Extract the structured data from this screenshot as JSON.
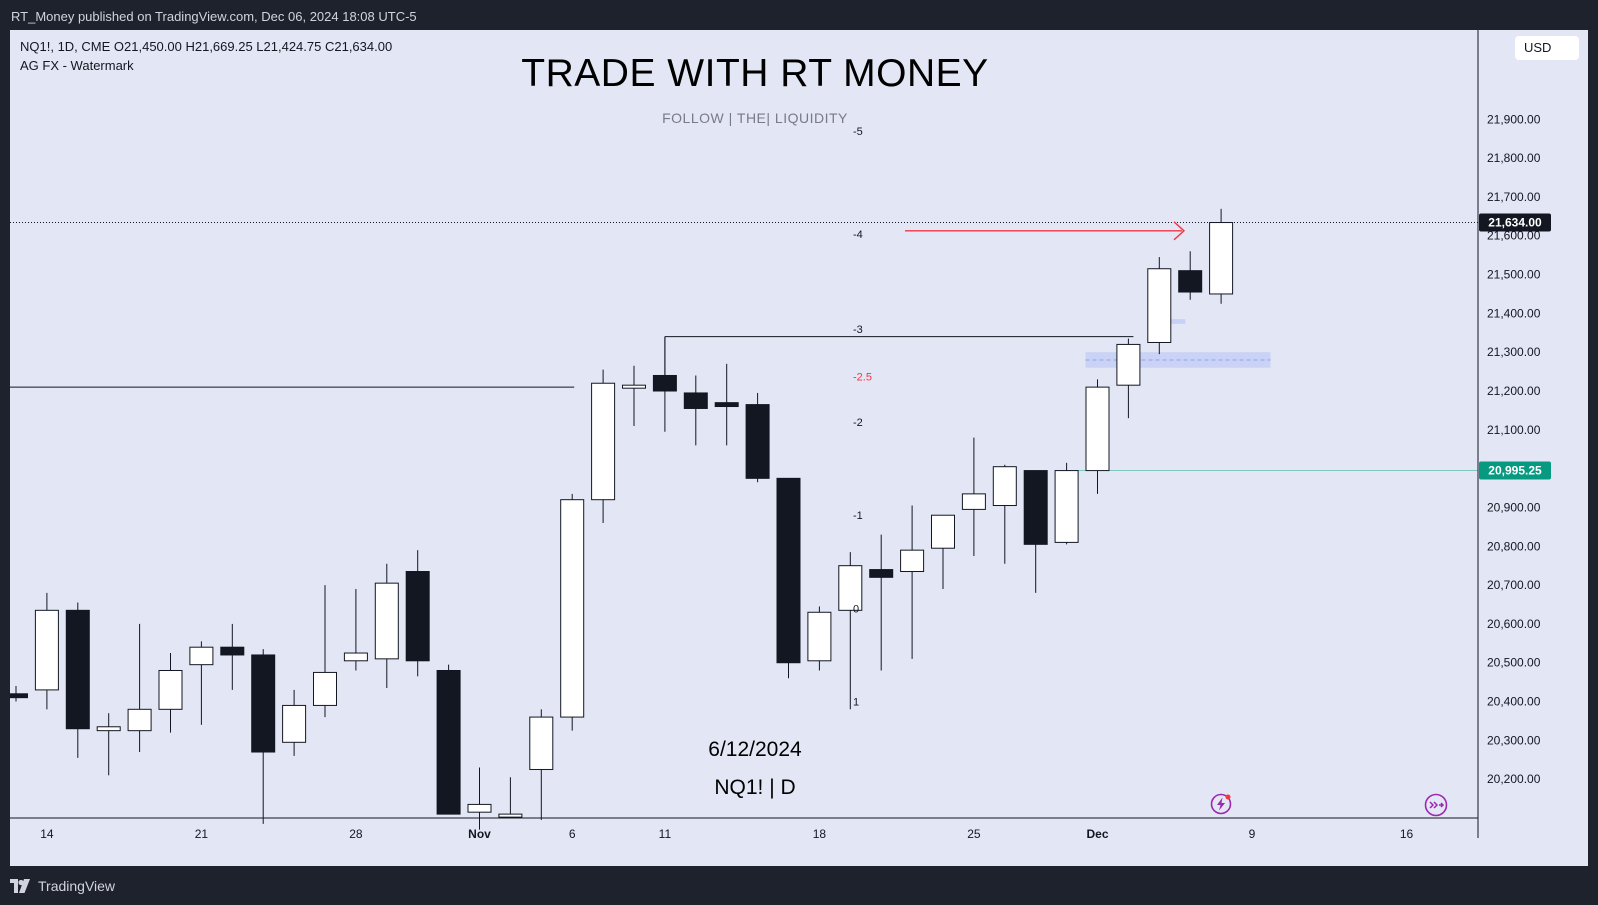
{
  "header": {
    "publisher_line": "RT_Money published on TradingView.com, Dec 06, 2024 18:08 UTC-5"
  },
  "footer": {
    "brand": "TradingView"
  },
  "legend": {
    "symbol_line": "NQ1!, 1D, CME  O21,450.00  H21,669.25  L21,424.75  C21,634.00",
    "indicator_line": "AG FX - Watermark"
  },
  "currency": "USD",
  "watermark": {
    "title": "TRADE WITH RT MONEY",
    "subtitle": "FOLLOW   |   THE|   LIQUIDITY",
    "date": "6/12/2024",
    "symbol": "NQ1!  |  D"
  },
  "colors": {
    "background": "#e3e6f4",
    "frame": "#1e222d",
    "bull_fill": "#ffffff",
    "bear_fill": "#131722",
    "candle_border": "#131722",
    "last_price_tag": "#131722",
    "level_tag": "#089981",
    "level_line": "#7fc8c0",
    "arrow": "#f23645",
    "fvg": "#c7d0f5"
  },
  "chart_data": {
    "type": "candlestick",
    "symbol": "NQ1!",
    "timeframe": "1D",
    "exchange": "CME",
    "ylim": [
      20100,
      22130
    ],
    "y_ticks": [
      20200,
      20300,
      20400,
      20500,
      20600,
      20700,
      20800,
      20900,
      21000,
      21100,
      21200,
      21300,
      21400,
      21500,
      21600,
      21700,
      21800,
      21900
    ],
    "y_tick_labels": [
      "20,200.00",
      "20,300.00",
      "20,400.00",
      "20,500.00",
      "20,600.00",
      "20,700.00",
      "20,800.00",
      "20,900.00",
      "21,000.00",
      "21,100.00",
      "21,200.00",
      "21,300.00",
      "21,400.00",
      "21,500.00",
      "21,600.00",
      "21,700.00",
      "21,800.00",
      "21,900.00"
    ],
    "x_labels": [
      {
        "slot": 1,
        "label": "14",
        "bold": false
      },
      {
        "slot": 6,
        "label": "21",
        "bold": false
      },
      {
        "slot": 11,
        "label": "28",
        "bold": false
      },
      {
        "slot": 15,
        "label": "Nov",
        "bold": true
      },
      {
        "slot": 18,
        "label": "6",
        "bold": false
      },
      {
        "slot": 21,
        "label": "11",
        "bold": false
      },
      {
        "slot": 26,
        "label": "18",
        "bold": false
      },
      {
        "slot": 31,
        "label": "25",
        "bold": false
      },
      {
        "slot": 35,
        "label": "Dec",
        "bold": true
      },
      {
        "slot": 40,
        "label": "9",
        "bold": false
      },
      {
        "slot": 45,
        "label": "16",
        "bold": false
      }
    ],
    "candles": [
      {
        "o": 20420,
        "h": 20440,
        "l": 20400,
        "c": 20410
      },
      {
        "o": 20430,
        "h": 20680,
        "l": 20380,
        "c": 20635
      },
      {
        "o": 20635,
        "h": 20655,
        "l": 20255,
        "c": 20330
      },
      {
        "o": 20325,
        "h": 20370,
        "l": 20210,
        "c": 20335
      },
      {
        "o": 20325,
        "h": 20600,
        "l": 20270,
        "c": 20380
      },
      {
        "o": 20380,
        "h": 20525,
        "l": 20320,
        "c": 20480
      },
      {
        "o": 20495,
        "h": 20555,
        "l": 20340,
        "c": 20540
      },
      {
        "o": 20540,
        "h": 20600,
        "l": 20430,
        "c": 20520
      },
      {
        "o": 20520,
        "h": 20535,
        "l": 20085,
        "c": 20270
      },
      {
        "o": 20295,
        "h": 20430,
        "l": 20260,
        "c": 20390
      },
      {
        "o": 20390,
        "h": 20700,
        "l": 20360,
        "c": 20475
      },
      {
        "o": 20505,
        "h": 20690,
        "l": 20480,
        "c": 20525
      },
      {
        "o": 20510,
        "h": 20755,
        "l": 20435,
        "c": 20705
      },
      {
        "o": 20735,
        "h": 20790,
        "l": 20465,
        "c": 20505
      },
      {
        "o": 20480,
        "h": 20495,
        "l": 20110,
        "c": 20110
      },
      {
        "o": 20115,
        "h": 20230,
        "l": 20070,
        "c": 20135
      },
      {
        "o": 20110,
        "h": 20205,
        "l": 20110,
        "c": 20110
      },
      {
        "o": 20225,
        "h": 20380,
        "l": 20095,
        "c": 20360
      },
      {
        "o": 20360,
        "h": 20935,
        "l": 20325,
        "c": 20920
      },
      {
        "o": 20920,
        "h": 21255,
        "l": 20860,
        "c": 21220
      },
      {
        "o": 21210,
        "h": 21265,
        "l": 21110,
        "c": 21215
      },
      {
        "o": 21240,
        "h": 21340,
        "l": 21095,
        "c": 21200
      },
      {
        "o": 21195,
        "h": 21240,
        "l": 21060,
        "c": 21155
      },
      {
        "o": 21170,
        "h": 21270,
        "l": 21060,
        "c": 21160
      },
      {
        "o": 21165,
        "h": 21195,
        "l": 20965,
        "c": 20975
      },
      {
        "o": 20975,
        "h": 20975,
        "l": 20460,
        "c": 20500
      },
      {
        "o": 20505,
        "h": 20645,
        "l": 20480,
        "c": 20630
      },
      {
        "o": 20635,
        "h": 20785,
        "l": 20380,
        "c": 20750
      },
      {
        "o": 20740,
        "h": 20830,
        "l": 20480,
        "c": 20720
      },
      {
        "o": 20735,
        "h": 20905,
        "l": 20510,
        "c": 20790
      },
      {
        "o": 20795,
        "h": 20880,
        "l": 20690,
        "c": 20880
      },
      {
        "o": 20895,
        "h": 21080,
        "l": 20775,
        "c": 20935
      },
      {
        "o": 20905,
        "h": 21010,
        "l": 20755,
        "c": 21005
      },
      {
        "o": 20995,
        "h": 20995,
        "l": 20680,
        "c": 20805
      },
      {
        "o": 20810,
        "h": 21015,
        "l": 20805,
        "c": 20995
      },
      {
        "o": 20995,
        "h": 21230,
        "l": 20935,
        "c": 21210
      },
      {
        "o": 21215,
        "h": 21335,
        "l": 21130,
        "c": 21320
      },
      {
        "o": 21325,
        "h": 21545,
        "l": 21295,
        "c": 21515
      },
      {
        "o": 21510,
        "h": 21560,
        "l": 21435,
        "c": 21455
      },
      {
        "o": 21450,
        "h": 21669.25,
        "l": 21424.75,
        "c": 21634
      }
    ],
    "last_price": 21634,
    "last_price_label": "21,634.00",
    "level": 20995.25,
    "level_label": "20,995.25",
    "fib_levels": [
      {
        "label": "-5",
        "price": 21870,
        "color": "#131722"
      },
      {
        "label": "-4",
        "price": 21605,
        "color": "#131722"
      },
      {
        "label": "-3",
        "price": 21360,
        "color": "#131722"
      },
      {
        "label": "-2.5",
        "price": 21238,
        "color": "#f23645"
      },
      {
        "label": "-2",
        "price": 21120,
        "color": "#131722"
      },
      {
        "label": "-1",
        "price": 20880,
        "color": "#131722"
      },
      {
        "label": "0",
        "price": 20640,
        "color": "#131722"
      },
      {
        "label": "1",
        "price": 20400,
        "color": "#131722"
      }
    ]
  }
}
